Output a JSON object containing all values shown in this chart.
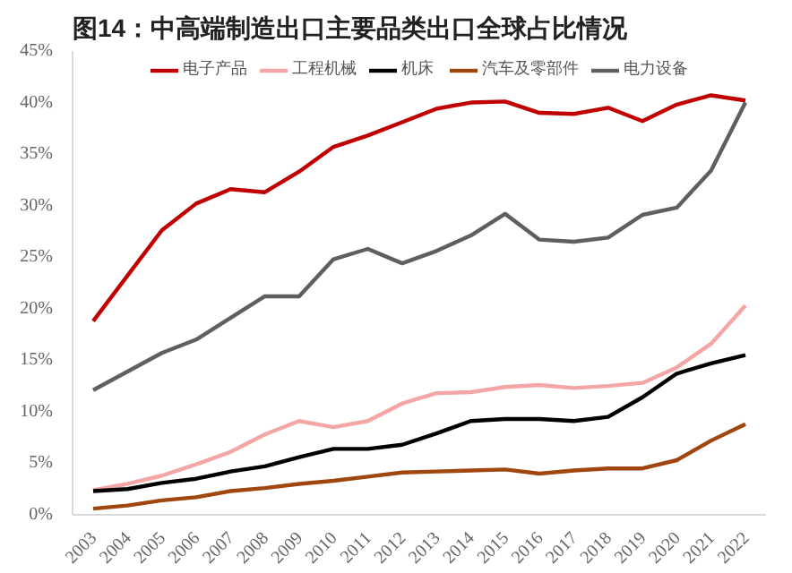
{
  "chart_data": {
    "type": "line",
    "title": "图14：中高端制造出口主要品类出口全球占比情况",
    "categories": [
      "2003",
      "2004",
      "2005",
      "2006",
      "2007",
      "2008",
      "2009",
      "2010",
      "2011",
      "2012",
      "2013",
      "2014",
      "2015",
      "2016",
      "2017",
      "2018",
      "2019",
      "2020",
      "2021",
      "2022"
    ],
    "series": [
      {
        "name": "电子产品",
        "color": "#c00000",
        "values": [
          18.8,
          23.2,
          27.6,
          30.2,
          31.6,
          31.3,
          33.3,
          35.7,
          36.8,
          38.1,
          39.4,
          40.0,
          40.1,
          39.0,
          38.9,
          39.5,
          38.2,
          39.8,
          40.7,
          40.2
        ]
      },
      {
        "name": "工程机械",
        "color": "#f4a6a6",
        "values": [
          2.4,
          3.0,
          3.8,
          4.9,
          6.1,
          7.8,
          9.1,
          8.5,
          9.1,
          10.8,
          11.8,
          11.9,
          12.4,
          12.6,
          12.3,
          12.5,
          12.8,
          14.3,
          16.6,
          20.3
        ]
      },
      {
        "name": "机床",
        "color": "#000000",
        "values": [
          2.3,
          2.5,
          3.1,
          3.5,
          4.2,
          4.7,
          5.6,
          6.4,
          6.4,
          6.8,
          7.9,
          9.1,
          9.3,
          9.3,
          9.1,
          9.5,
          11.4,
          13.7,
          14.7,
          15.5
        ]
      },
      {
        "name": "汽车及零部件",
        "color": "#a0460f",
        "values": [
          0.6,
          0.9,
          1.4,
          1.7,
          2.3,
          2.6,
          3.0,
          3.3,
          3.7,
          4.1,
          4.2,
          4.3,
          4.4,
          4.0,
          4.3,
          4.5,
          4.5,
          5.3,
          7.2,
          8.8
        ]
      },
      {
        "name": "电力设备",
        "color": "#5f5f5f",
        "values": [
          12.1,
          13.9,
          15.7,
          17.0,
          19.1,
          21.2,
          21.2,
          24.8,
          25.8,
          24.4,
          25.6,
          27.1,
          29.2,
          26.7,
          26.5,
          26.9,
          29.1,
          29.8,
          33.4,
          40.0
        ]
      }
    ],
    "ylim": [
      0,
      45
    ],
    "yticks": [
      {
        "value": 0,
        "label": "0%"
      },
      {
        "value": 5,
        "label": "5%"
      },
      {
        "value": 10,
        "label": "10%"
      },
      {
        "value": 15,
        "label": "15%"
      },
      {
        "value": 20,
        "label": "20%"
      },
      {
        "value": 25,
        "label": "25%"
      },
      {
        "value": 30,
        "label": "30%"
      },
      {
        "value": 35,
        "label": "35%"
      },
      {
        "value": 40,
        "label": "40%"
      },
      {
        "value": 45,
        "label": "45%"
      }
    ],
    "grid": false,
    "legend": "top",
    "marker": "none",
    "line_style": "solid"
  }
}
